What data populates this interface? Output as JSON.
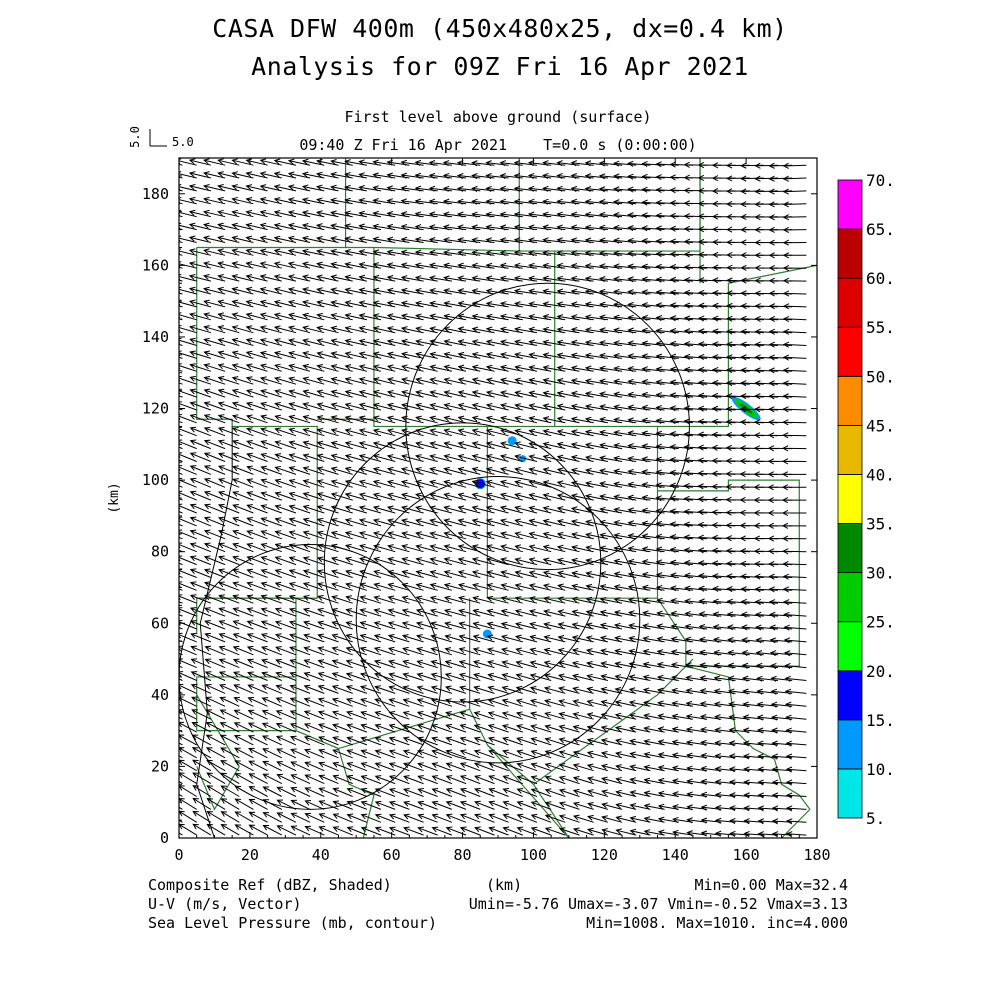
{
  "title": {
    "line1": "CASA DFW 400m (450x480x25, dx=0.4 km)",
    "line2": "Analysis for 09Z Fri 16 Apr 2021"
  },
  "subtitle": {
    "line1": "First level above ground (surface)",
    "line2": "09:40 Z Fri 16 Apr 2021    T=0.0 s (0:00:00)"
  },
  "reference_vector": {
    "value_label": "5.0",
    "rotated_label": "5.0"
  },
  "footer": {
    "field1_name": "Composite Ref (dBZ, Shaded)",
    "axis_unit": "(km)",
    "field1_stats": "Min=0.00 Max=32.4",
    "field2_name": "U-V (m/s, Vector)",
    "field2_stats": "Umin=-5.76 Umax=-3.07 Vmin=-0.52 Vmax=3.13",
    "field3_name": "Sea Level Pressure (mb, contour)",
    "field3_stats": "Min=1008. Max=1010. inc=4.000"
  },
  "colors": {
    "vector": "#000000",
    "boundary": "#2e7d32",
    "range_ring": "#000000",
    "frame": "#000000"
  },
  "chart_data": {
    "type": "map",
    "xlabel": "(km)",
    "ylabel": "(km)",
    "xlim": [
      0,
      180
    ],
    "ylim": [
      0,
      190
    ],
    "xticks": [
      0,
      20,
      40,
      60,
      80,
      100,
      120,
      140,
      160,
      180
    ],
    "yticks": [
      0,
      20,
      40,
      60,
      80,
      100,
      120,
      140,
      160,
      180
    ],
    "wind": {
      "u_min": -5.76,
      "u_max": -3.07,
      "v_min": -0.52,
      "v_max": 3.13,
      "samples": [
        {
          "x": 5,
          "y": 185,
          "u": -5.0,
          "v": 1.2
        },
        {
          "x": 5,
          "y": 5,
          "u": -4.2,
          "v": 2.6
        },
        {
          "x": 90,
          "y": 5,
          "u": -4.6,
          "v": 1.8
        },
        {
          "x": 90,
          "y": 95,
          "u": -5.2,
          "v": 1.4
        },
        {
          "x": 175,
          "y": 185,
          "u": -5.4,
          "v": -0.2
        },
        {
          "x": 175,
          "y": 5,
          "u": -4.6,
          "v": 0.3
        },
        {
          "x": 90,
          "y": 185,
          "u": -5.3,
          "v": 0.6
        },
        {
          "x": 175,
          "y": 95,
          "u": -5.6,
          "v": 0.0
        },
        {
          "x": 5,
          "y": 95,
          "u": -4.8,
          "v": 2.0
        }
      ]
    },
    "range_rings": [
      {
        "cx": 104,
        "cy": 115,
        "r": 40
      },
      {
        "cx": 80,
        "cy": 77,
        "r": 39
      },
      {
        "cx": 90,
        "cy": 61,
        "r": 40
      },
      {
        "cx": 37,
        "cy": 45,
        "r": 37
      }
    ],
    "reflectivity_echoes": [
      {
        "x": 160,
        "y": 120,
        "dbz": 32.4
      },
      {
        "x": 85,
        "y": 99,
        "dbz": 16
      },
      {
        "x": 94,
        "y": 111,
        "dbz": 12
      },
      {
        "x": 97,
        "y": 106,
        "dbz": 11
      },
      {
        "x": 87,
        "y": 57,
        "dbz": 12
      }
    ],
    "pressure_contours": [
      {
        "label": "1008",
        "points": [
          [
            10,
            0
          ],
          [
            5,
            15
          ],
          [
            8,
            35
          ],
          [
            6,
            60
          ],
          [
            12,
            85
          ],
          [
            15,
            100
          ],
          [
            15,
            115
          ]
        ]
      }
    ],
    "colorbar": {
      "levels": [
        5,
        10,
        15,
        20,
        25,
        30,
        35,
        40,
        45,
        50,
        55,
        60,
        65,
        70
      ],
      "labels": [
        "5.",
        "10.",
        "15.",
        "20.",
        "25.",
        "30.",
        "35.",
        "40.",
        "45.",
        "50.",
        "55.",
        "60.",
        "65.",
        "70."
      ],
      "colors": [
        "#00e6e6",
        "#0099ff",
        "#0000ff",
        "#00ff00",
        "#00cc00",
        "#008800",
        "#ffff00",
        "#e6b800",
        "#ff8c00",
        "#ff0000",
        "#dd0000",
        "#bb0000",
        "#ff00ff"
      ]
    }
  }
}
